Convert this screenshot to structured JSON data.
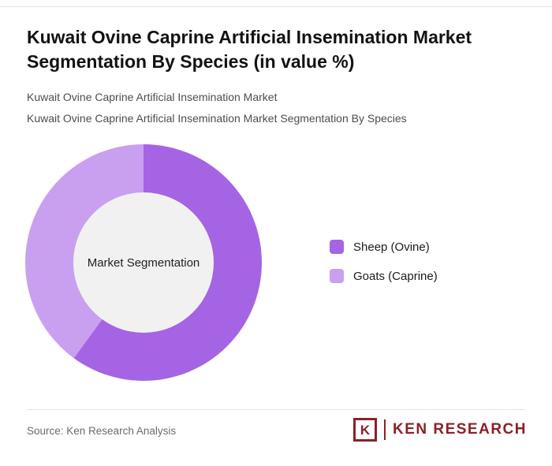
{
  "header": {
    "title": "Kuwait Ovine Caprine Artificial Insemination Market Segmentation By Species (in value %)",
    "subtitle1": "Kuwait Ovine Caprine Artificial Insemination Market",
    "subtitle2": "Kuwait Ovine Caprine Artificial Insemination Market Segmentation By Species"
  },
  "chart_data": {
    "type": "pie",
    "donut": true,
    "title": "Kuwait Ovine Caprine Artificial Insemination Market Segmentation By Species (in value %)",
    "center_label": "Market Segmentation",
    "categories": [
      "Sheep (Ovine)",
      "Goats (Caprine)"
    ],
    "values": [
      60,
      40
    ],
    "colors": [
      "#a564e3",
      "#c9a0ef"
    ],
    "hole_color": "#f1f1f2",
    "start_angle_deg": 0,
    "legend_position": "right"
  },
  "footer": {
    "source": "Source: Ken Research Analysis",
    "logo_k": "K",
    "logo_text": "KEN RESEARCH"
  }
}
